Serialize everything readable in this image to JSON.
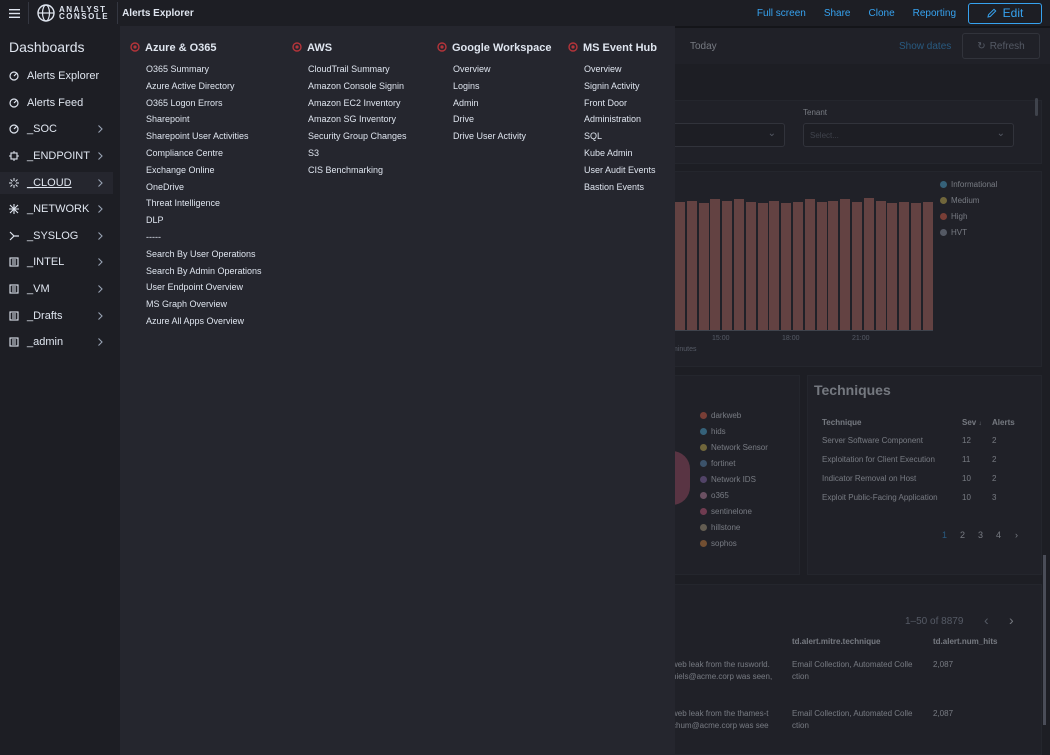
{
  "topbar": {
    "logo_line1": "ANALYST",
    "logo_line2": "CONSOLE",
    "breadcrumb": "Alerts Explorer",
    "links": [
      "Full screen",
      "Share",
      "Clone",
      "Reporting"
    ],
    "edit_label": "Edit"
  },
  "sidebar": {
    "title": "Dashboards",
    "items": [
      {
        "label": "Alerts Explorer",
        "icon": "dashboard-icon",
        "chevron": false
      },
      {
        "label": "Alerts Feed",
        "icon": "dashboard-icon",
        "chevron": false
      },
      {
        "label": "_SOC",
        "icon": "dashboard-icon",
        "chevron": true
      },
      {
        "label": "_ENDPOINT",
        "icon": "endpoint-icon",
        "chevron": true
      },
      {
        "label": "_CLOUD",
        "icon": "cloud-icon",
        "chevron": true,
        "active": true
      },
      {
        "label": "_NETWORK",
        "icon": "network-icon",
        "chevron": true
      },
      {
        "label": "_SYSLOG",
        "icon": "syslog-icon",
        "chevron": true
      },
      {
        "label": "_INTEL",
        "icon": "folder-icon",
        "chevron": true
      },
      {
        "label": "_VM",
        "icon": "folder-icon",
        "chevron": true
      },
      {
        "label": "_Drafts",
        "icon": "folder-icon",
        "chevron": true
      },
      {
        "label": "_admin",
        "icon": "folder-icon",
        "chevron": true
      }
    ]
  },
  "megamenu": {
    "columns": [
      {
        "title": "Azure & O365",
        "items": [
          "O365 Summary",
          "Azure Active Directory",
          "O365 Logon Errors",
          "Sharepoint",
          "Sharepoint User Activities",
          "Compliance Centre",
          "Exchange Online",
          "OneDrive",
          "Threat Intelligence",
          "DLP",
          "-----",
          "Search By User Operations",
          "Search By Admin Operations",
          "User Endpoint Overview",
          "MS Graph Overview",
          "Azure All Apps Overview"
        ]
      },
      {
        "title": "AWS",
        "items": [
          "CloudTrail Summary",
          "Amazon Console Signin",
          "Amazon EC2 Inventory",
          "Amazon SG Inventory",
          "Security Group Changes",
          "S3",
          "CIS Benchmarking"
        ]
      },
      {
        "title": "Google Workspace",
        "items": [
          "Overview",
          "Logins",
          "Admin",
          "Drive",
          "Drive User Activity"
        ]
      },
      {
        "title": "MS Event Hub",
        "items": [
          "Overview",
          "Signin Activity",
          "Front Door",
          "Administration",
          "SQL",
          "Kube Admin",
          "User Audit Events",
          "Bastion Events"
        ]
      }
    ]
  },
  "background": {
    "today": "Today",
    "show_dates": "Show dates",
    "refresh": "Refresh",
    "tenant_label": "Tenant",
    "select_placeholder": "Select...",
    "legend": [
      {
        "label": "Informational",
        "color": "#54b3e0"
      },
      {
        "label": "Medium",
        "color": "#d6bf57"
      },
      {
        "label": "High",
        "color": "#e7664c"
      },
      {
        "label": "HVT",
        "color": "#98a2b3"
      }
    ],
    "bar_values": [
      0.97,
      0.98,
      0.96,
      0.99,
      0.98,
      0.99,
      0.97,
      0.96,
      0.98,
      0.96,
      0.97,
      0.99,
      0.97,
      0.98,
      0.99,
      0.97,
      1.0,
      0.98,
      0.96,
      0.97,
      0.96,
      0.97
    ],
    "x_ticks": [
      "15:00",
      "18:00",
      "21:00"
    ],
    "x_label": "minutes",
    "sources": [
      "darkweb",
      "hids",
      "Network Sensor",
      "fortinet",
      "Network IDS",
      "o365",
      "sentinelone",
      "hillstone",
      "sophos"
    ],
    "source_colors": [
      "#e7664c",
      "#54b3e0",
      "#d6bf57",
      "#6092c0",
      "#9170b8",
      "#ca8eae",
      "#d36086",
      "#b9a888",
      "#da8b45"
    ],
    "techniques": {
      "title": "Techniques",
      "headers": [
        "Technique",
        "Sev",
        "Alerts"
      ],
      "rows": [
        [
          "Server Software Component",
          "12",
          "2"
        ],
        [
          "Exploitation for Client Execution",
          "11",
          "2"
        ],
        [
          "Indicator Removal on Host",
          "10",
          "2"
        ],
        [
          "Exploit Public-Facing Application",
          "10",
          "3"
        ]
      ],
      "pages": [
        "1",
        "2",
        "3",
        "4"
      ]
    },
    "alerts": {
      "count": "1–50 of 8879",
      "headers": [
        "td.alert.mitre.technique",
        "td.alert.num_hits"
      ],
      "rows": [
        {
          "desc1": "web leak from the rusworld.",
          "desc2": "niels@acme.corp was seen,",
          "technique": "Email Collection, Automated Colle",
          "technique2": "ction",
          "hits": "2,087"
        },
        {
          "desc1": "web leak from the thames-t",
          "desc2": "chum@acme.corp was see",
          "technique": "Email Collection, Automated Colle",
          "technique2": "ction",
          "hits": "2,087"
        }
      ]
    }
  }
}
